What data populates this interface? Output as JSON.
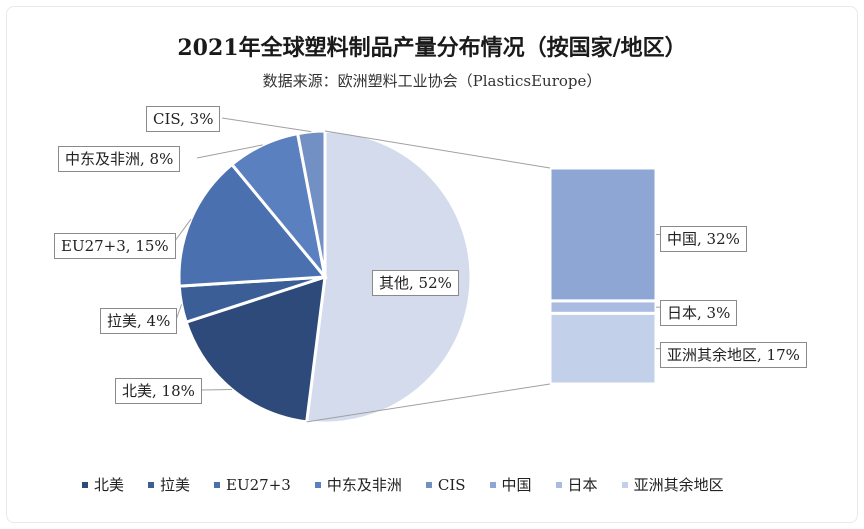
{
  "chart_data": {
    "type": "bar-of-pie",
    "title": "2021年全球塑料制品产量分布情况（按国家/地区）",
    "subtitle": "数据来源：欧洲塑料工业协会（PlasticsEurope）",
    "pie": [
      {
        "name": "北美",
        "value": 18,
        "label": "北美, 18%",
        "color": "#2e4a7a"
      },
      {
        "name": "拉美",
        "value": 4,
        "label": "拉美, 4%",
        "color": "#3b5e97"
      },
      {
        "name": "EU27+3",
        "value": 15,
        "label": "EU27+3, 15%",
        "color": "#4a70b0"
      },
      {
        "name": "中东及非洲",
        "value": 8,
        "label": "中东及非洲, 8%",
        "color": "#5a80c0"
      },
      {
        "name": "CIS",
        "value": 3,
        "label": "CIS, 3%",
        "color": "#7390c4"
      },
      {
        "name": "其他",
        "value": 52,
        "label": "其他, 52%",
        "color": "#d3dbec"
      }
    ],
    "bar": [
      {
        "name": "中国",
        "value": 32,
        "label": "中国, 32%",
        "color": "#8ea6d4"
      },
      {
        "name": "日本",
        "value": 3,
        "label": "日本, 3%",
        "color": "#a9bbe0"
      },
      {
        "name": "亚洲其余地区",
        "value": 17,
        "label": "亚洲其余地区, 17%",
        "color": "#c3d0ea"
      }
    ],
    "legend": [
      "北美",
      "拉美",
      "EU27+3",
      "中东及非洲",
      "CIS",
      "中国",
      "日本",
      "亚洲其余地区"
    ],
    "legend_colors": [
      "#2e4a7a",
      "#3b5e97",
      "#4a70b0",
      "#5a80c0",
      "#7390c4",
      "#8ea6d4",
      "#a9bbe0",
      "#c3d0ea"
    ]
  }
}
